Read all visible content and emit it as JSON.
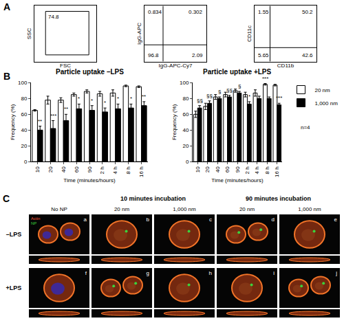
{
  "panel_labels": [
    "A",
    "B",
    "C"
  ],
  "flow_plots": [
    {
      "x_label": "FSC",
      "y_label": "SSC",
      "gate": 74.8
    },
    {
      "x_label": "IgG-APC-Cy7",
      "y_label": "IgG-APC",
      "quadrants": {
        "top_left": 0.834,
        "top_right": 0.302,
        "bottom_left": 96.8,
        "bottom_right": 2.09
      }
    },
    {
      "x_label": "CD11b",
      "y_label": "CD11c",
      "quadrants": {
        "top_left": 1.55,
        "top_right": 50.2,
        "bottom_left": 5.65,
        "bottom_right": 42.6
      }
    }
  ],
  "chart_data": [
    {
      "type": "bar",
      "title": "Particle uptake –LPS",
      "x_label": "Time (minutes/hours)",
      "y_label": "Frequency (%)",
      "categories": [
        "10",
        "20",
        "40",
        "60",
        "90",
        "2 h",
        "4 h",
        "8 h",
        "16 h"
      ],
      "series": [
        {
          "name": "20 nm",
          "color": "#ffffff",
          "values": [
            65,
            78,
            78,
            85,
            89,
            86,
            87,
            96,
            95
          ],
          "errors": [
            1,
            5,
            3,
            2,
            2,
            3,
            4,
            1,
            1
          ]
        },
        {
          "name": "1,000 nm",
          "color": "#000000",
          "values": [
            40,
            42,
            52,
            67,
            65,
            63,
            67,
            68,
            71
          ],
          "errors": [
            5,
            10,
            8,
            6,
            6,
            5,
            6,
            5,
            5
          ]
        }
      ],
      "ylim": [
        0,
        100
      ],
      "yticks": [
        0,
        20,
        40,
        60,
        80,
        100
      ],
      "grid": false,
      "annotations": [
        {
          "category": "10",
          "series": "1,000 nm",
          "text": "**"
        },
        {
          "category": "20",
          "series": "1,000 nm",
          "text": "***"
        },
        {
          "category": "40",
          "series": "1,000 nm",
          "text": "**"
        },
        {
          "category": "60",
          "series": "1,000 nm",
          "text": "*"
        },
        {
          "category": "90",
          "series": "1,000 nm",
          "text": "*"
        },
        {
          "category": "2 h",
          "series": "1,000 nm",
          "text": "*"
        },
        {
          "category": "4 h",
          "series": "1,000 nm",
          "text": "*"
        },
        {
          "category": "8 h",
          "series": "1,000 nm",
          "text": "*"
        },
        {
          "category": "16 h",
          "series": "1,000 nm",
          "text": "**"
        }
      ]
    },
    {
      "type": "bar",
      "title": "Particle uptake +LPS",
      "x_label": "Time (minutes/hours)",
      "y_label": "Frequency (%)",
      "categories": [
        "10",
        "20",
        "40",
        "60",
        "90",
        "2 h",
        "4 h",
        "8 h",
        "16 h"
      ],
      "series": [
        {
          "name": "20 nm",
          "color": "#ffffff",
          "values": [
            60,
            70,
            82,
            85,
            90,
            85,
            87,
            98,
            97
          ],
          "errors": [
            4,
            4,
            3,
            3,
            2,
            3,
            4,
            1,
            1
          ]
        },
        {
          "name": "1,000 nm",
          "color": "#000000",
          "values": [
            68,
            74,
            80,
            82,
            87,
            73,
            80,
            80,
            72
          ],
          "errors": [
            3,
            3,
            2,
            2,
            2,
            3,
            3,
            2,
            2
          ]
        }
      ],
      "ylim": [
        0,
        100
      ],
      "yticks": [
        0,
        20,
        40,
        60,
        80,
        100
      ],
      "grid": false,
      "legend": "right",
      "legend_note": "n=4",
      "annotations": [
        {
          "category": "10",
          "series": "1,000 nm",
          "text": "§§"
        },
        {
          "category": "20",
          "series": "1,000 nm",
          "text": "§§"
        },
        {
          "category": "40",
          "series": "1,000 nm",
          "text": "§"
        },
        {
          "category": "60",
          "series": "1,000 nm",
          "text": "§§"
        },
        {
          "category": "90",
          "series": "1,000 nm",
          "text": "§"
        },
        {
          "category": "2 h",
          "series": "1,000 nm",
          "text": "*"
        },
        {
          "category": "8 h",
          "series": "20 nm",
          "text": "***"
        },
        {
          "category": "16 h",
          "series": "1,000 nm",
          "text": "***"
        }
      ]
    }
  ],
  "image_grid": {
    "first_column": "No NP",
    "column_groups": [
      {
        "title": "10 minutes incubation",
        "columns": [
          "20 nm",
          "1,000 nm"
        ]
      },
      {
        "title": "90 minutes incubation",
        "columns": [
          "20 nm",
          "1,000 nm"
        ]
      }
    ],
    "row_labels": [
      "–LPS",
      "+LPS"
    ],
    "cells": [
      [
        "a",
        "b",
        "c",
        "d",
        "e"
      ],
      [
        "f",
        "g",
        "h",
        "i",
        "j"
      ]
    ],
    "stain_legend": [
      {
        "text": "Actin",
        "color": "#ff5a3c"
      },
      {
        "text": "NP",
        "color": "#3cd23c"
      }
    ]
  }
}
